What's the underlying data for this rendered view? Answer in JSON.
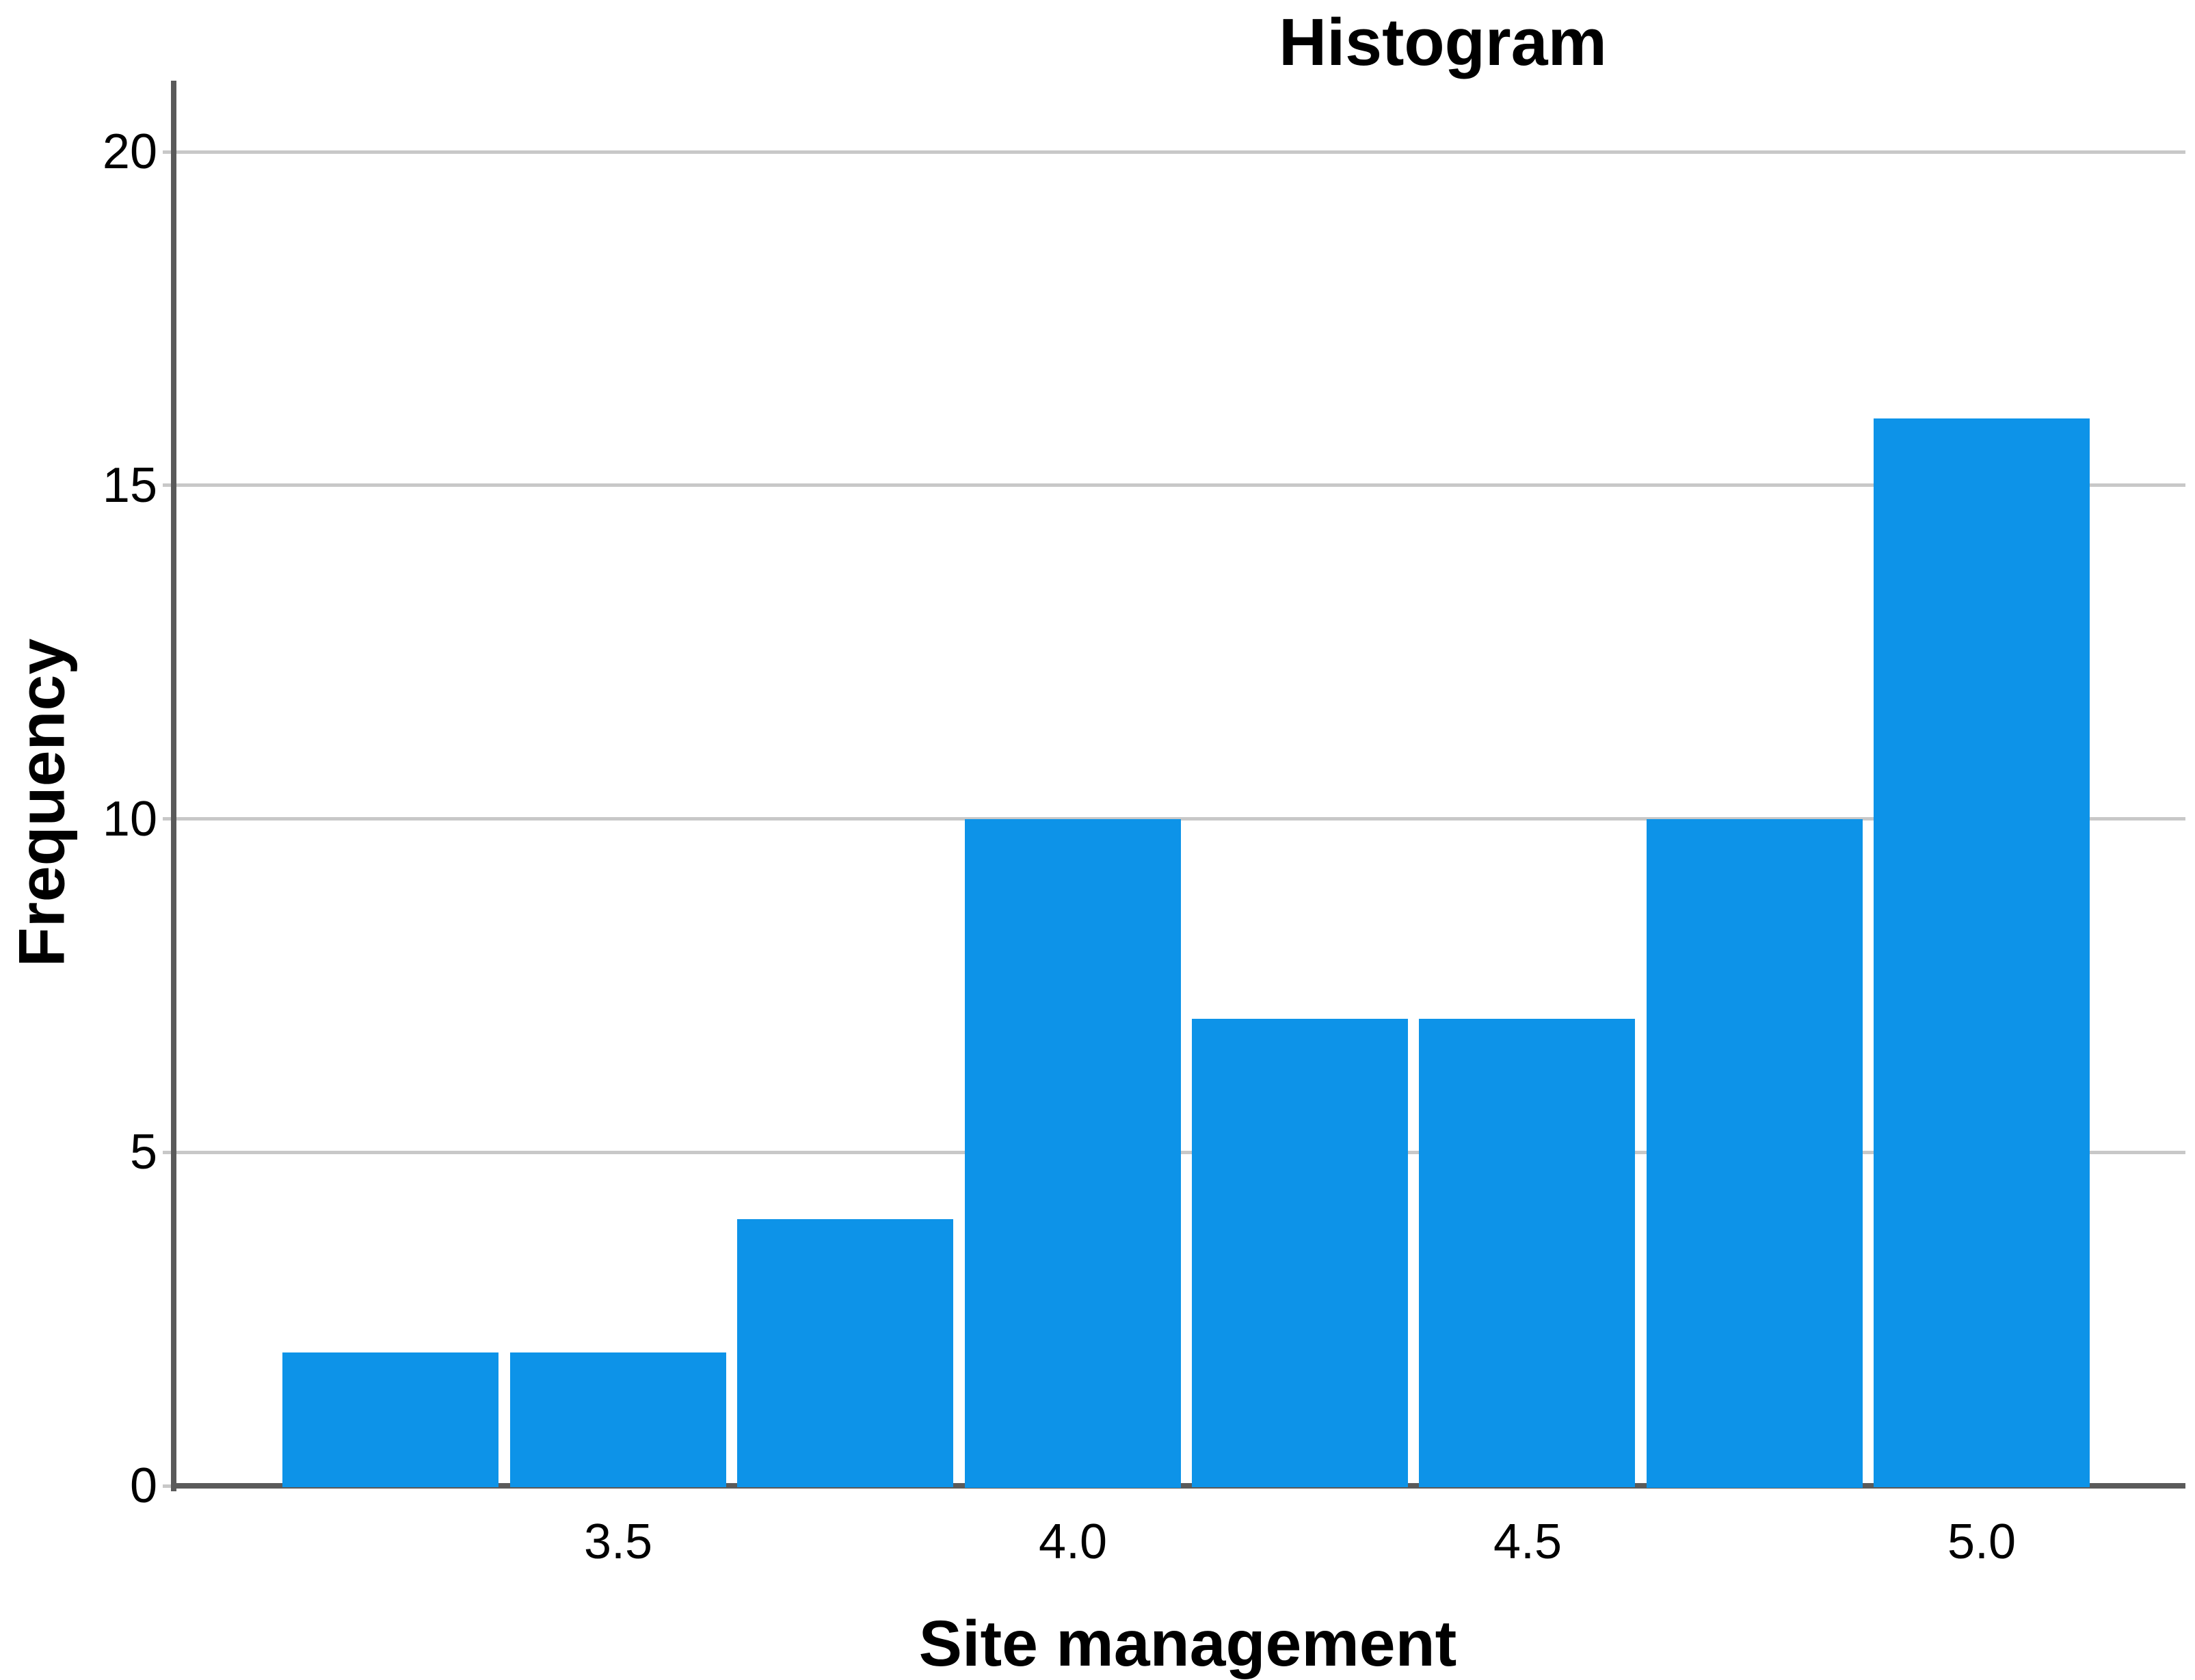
{
  "chart_data": {
    "type": "bar",
    "subtype": "histogram",
    "title": "Histogram",
    "xlabel": "Site management",
    "ylabel": "Frequency",
    "bin_width": 0.25,
    "bin_centers": [
      3.25,
      3.5,
      3.75,
      4.0,
      4.25,
      4.5,
      4.75,
      5.0
    ],
    "frequencies": [
      2,
      2,
      4,
      10,
      7,
      7,
      10,
      16
    ],
    "x_tick_values": [
      3.5,
      4.0,
      4.5,
      5.0
    ],
    "x_tick_labels": [
      "3.5",
      "4.0",
      "4.5",
      "5.0"
    ],
    "y_tick_values": [
      0,
      5,
      10,
      15,
      20
    ],
    "y_tick_labels": [
      "0",
      "5",
      "10",
      "15",
      "20"
    ],
    "ylim": [
      0,
      20
    ],
    "xlim": [
      3.01,
      5.22
    ],
    "grid": "horizontal",
    "legend": "none",
    "colors": {
      "bar": "#0D93E8",
      "axis": "#5A5A5A",
      "gridline": "#C8C8C8",
      "text": "#000000",
      "background": "#FFFFFF"
    }
  }
}
